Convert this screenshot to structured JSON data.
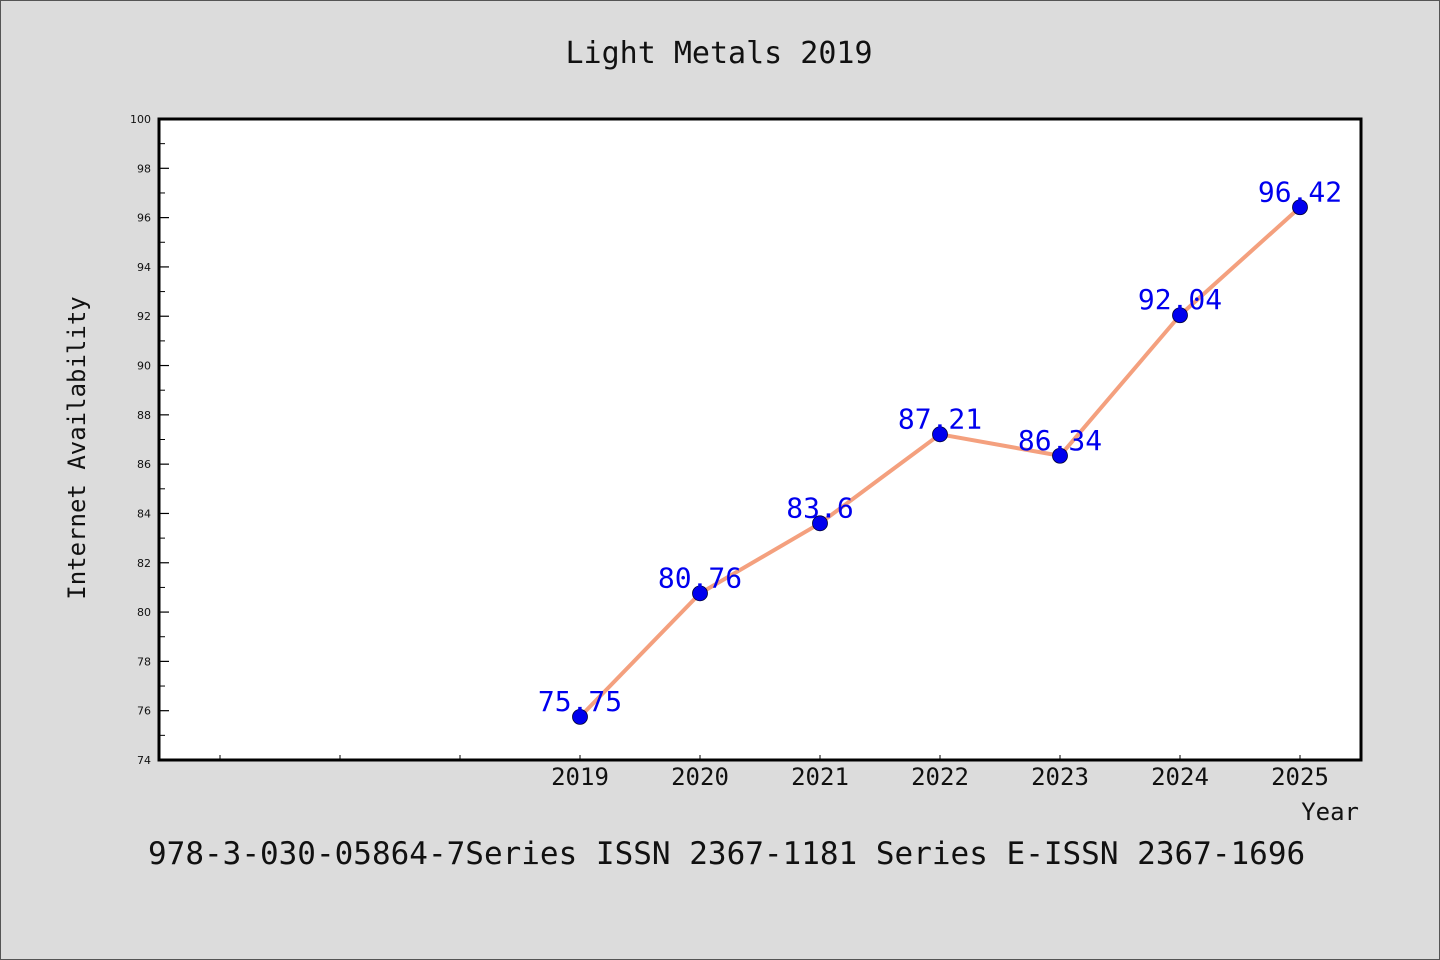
{
  "chart_data": {
    "type": "line",
    "title": "Light Metals 2019",
    "xlabel": "Year",
    "ylabel": "Internet Availability",
    "footer": "978-3-030-05864-7Series ISSN 2367-1181 Series E-ISSN 2367-1696",
    "x": [
      "2019",
      "2020",
      "2021",
      "2022",
      "2023",
      "2024",
      "2025"
    ],
    "series": [
      {
        "values": [
          75.75,
          80.76,
          83.6,
          87.21,
          86.34,
          92.04,
          96.42
        ],
        "labels": [
          "75.75",
          "80.76",
          "83.6",
          "87.21",
          "86.34",
          "92.04",
          "96.42"
        ]
      }
    ],
    "yticks": [
      "74",
      "76",
      "78",
      "80",
      "82",
      "84",
      "86",
      "88",
      "90",
      "92",
      "94",
      "96",
      "98",
      "100"
    ],
    "ylim": [
      74,
      100
    ],
    "grid": false,
    "colors": {
      "line": "#f4a07e",
      "marker": "#0000ee",
      "label": "#0000ee",
      "background": "#dcdcdc",
      "plot_background": "#ffffff"
    }
  }
}
